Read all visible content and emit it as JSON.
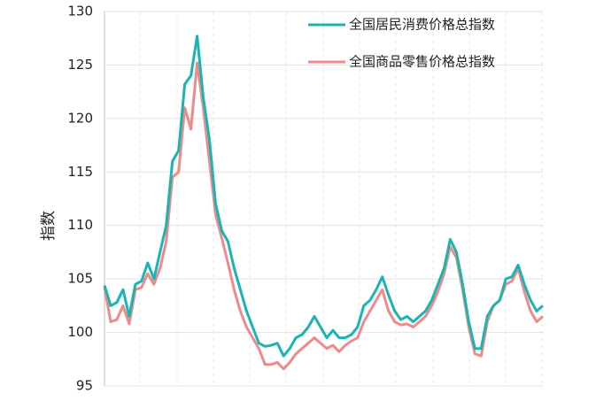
{
  "chart_data": {
    "type": "line",
    "ylabel": "指数",
    "ylim": [
      95,
      130
    ],
    "yticks": [
      95,
      100,
      105,
      110,
      115,
      120,
      125,
      130
    ],
    "grid": true,
    "legend": "upper right",
    "series": [
      {
        "name": "全国居民消费价格总指数",
        "color": "#1ab5b3",
        "values": [
          104.4,
          102.5,
          102.8,
          104.0,
          101.5,
          104.5,
          104.8,
          106.5,
          105.0,
          107.5,
          110.0,
          116,
          117,
          123.2,
          124,
          127.7,
          122,
          118,
          112,
          109.5,
          108.5,
          106,
          104,
          102,
          100.5,
          99,
          98.7,
          98.8,
          99,
          97.8,
          98.5,
          99.5,
          99.8,
          100.5,
          101.5,
          100.5,
          99.5,
          100.2,
          99.5,
          99.5,
          99.8,
          100.5,
          102.5,
          103,
          104,
          105.2,
          103.5,
          102,
          101.2,
          101.5,
          101,
          101.5,
          102,
          103,
          104.5,
          106,
          108.7,
          107.5,
          104.5,
          101,
          98.5,
          98.5,
          101.5,
          102.5,
          103,
          105,
          105.2,
          106.3,
          104.5,
          103,
          102,
          102.5
        ]
      },
      {
        "name": "全国商品零售价格总指数",
        "color": "#f08a8a",
        "values": [
          104.2,
          101,
          101.2,
          102.5,
          100.8,
          104,
          104.2,
          105.5,
          104.5,
          106,
          108.5,
          114.5,
          115,
          121,
          119,
          125.2,
          121,
          116,
          111,
          108.8,
          106.5,
          104,
          102,
          100.5,
          99.5,
          98.5,
          97,
          97,
          97.2,
          96.6,
          97.2,
          98,
          98.5,
          99,
          99.5,
          99,
          98.5,
          98.8,
          98.2,
          98.8,
          99.2,
          99.5,
          101,
          102,
          103,
          104,
          102,
          101,
          100.7,
          100.8,
          100.5,
          101,
          101.5,
          102.5,
          103.8,
          105.5,
          108,
          107,
          104,
          100.5,
          98,
          97.8,
          101,
          102.5,
          103,
          104.5,
          104.8,
          106,
          103.8,
          102,
          101,
          101.5
        ]
      }
    ]
  }
}
